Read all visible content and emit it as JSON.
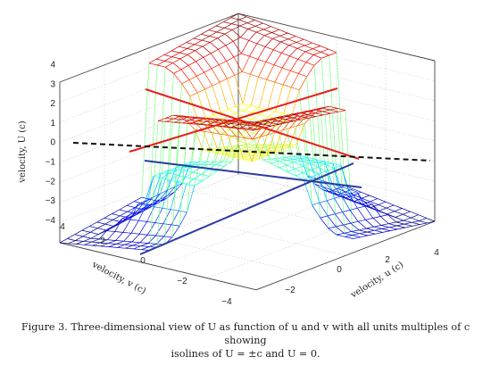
{
  "chart_data": {
    "type": "surface-3d",
    "z_axis": {
      "label": "velocity, U (c)",
      "ticks": [
        "4",
        "3",
        "2",
        "1",
        "0",
        "−1",
        "−2",
        "−3",
        "−4"
      ],
      "range": [
        -4,
        4
      ]
    },
    "v_axis": {
      "label": "velocity, v (c)",
      "ticks": [
        "4",
        "2",
        "0",
        "−2",
        "−4"
      ],
      "range": [
        -4,
        4
      ]
    },
    "u_axis": {
      "label": "velocity, u (c)",
      "ticks": [
        "−2",
        "0",
        "2",
        "4"
      ],
      "range": [
        -4,
        4
      ]
    },
    "surface": "U(u,v) with colormap jet; centre plateau near U=±1 (yellow), steep wings rising to ±4 (red) and falling to −4 (blue)",
    "isolines": [
      {
        "level": "U = +c",
        "color": "#e8201a"
      },
      {
        "level": "U = 0",
        "color": "#111111",
        "style": "dashed"
      },
      {
        "level": "U = −c",
        "color": "#2a3ba0"
      }
    ],
    "grid": true
  },
  "caption": {
    "line1": "Figure 3. Three-dimensional view of U as function of u and v with all units multiples of c showing",
    "line2": "isolines of U = ±c and U = 0."
  }
}
